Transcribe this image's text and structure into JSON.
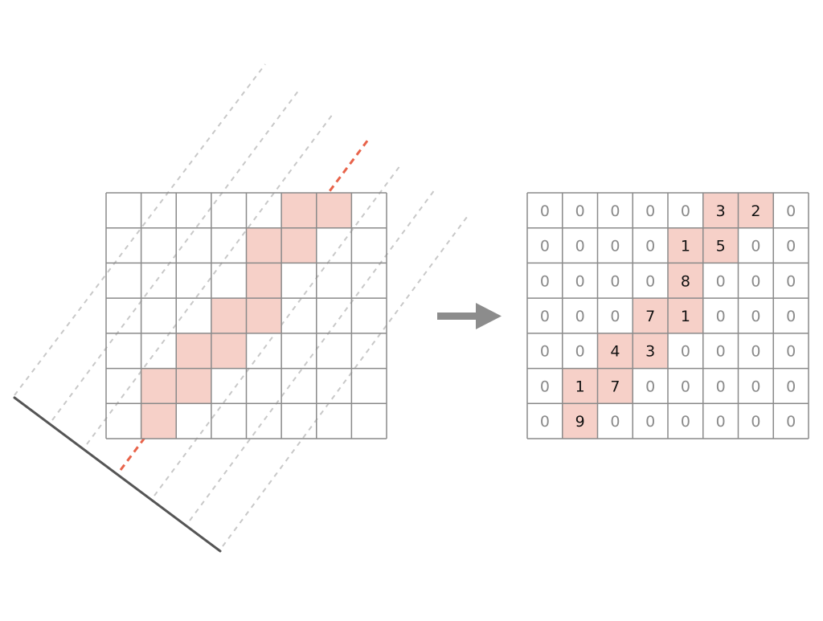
{
  "colors": {
    "grid_line": "#8a8a8a",
    "highlight": "#f6d0c8",
    "projection_line": "#e8634a",
    "ray_line": "#c8c8c8",
    "detector": "#555555",
    "arrow": "#8c8c8c",
    "value_zero": "#8a8a8a",
    "value_nonzero": "#111111"
  },
  "matrix": {
    "rows": [
      [
        "0",
        "0",
        "0",
        "0",
        "0",
        "3",
        "2",
        "0"
      ],
      [
        "0",
        "0",
        "0",
        "0",
        "1",
        "5",
        "0",
        "0"
      ],
      [
        "0",
        "0",
        "0",
        "0",
        "8",
        "0",
        "0",
        "0"
      ],
      [
        "0",
        "0",
        "0",
        "7",
        "1",
        "0",
        "0",
        "0"
      ],
      [
        "0",
        "0",
        "4",
        "3",
        "0",
        "0",
        "0",
        "0"
      ],
      [
        "0",
        "1",
        "7",
        "0",
        "0",
        "0",
        "0",
        "0"
      ],
      [
        "0",
        "9",
        "0",
        "0",
        "0",
        "0",
        "0",
        "0"
      ]
    ]
  },
  "pixel_grid": {
    "rows": 7,
    "cols": 8,
    "highlighted_cells": [
      [
        0,
        5
      ],
      [
        0,
        6
      ],
      [
        1,
        4
      ],
      [
        1,
        5
      ],
      [
        2,
        4
      ],
      [
        3,
        3
      ],
      [
        3,
        4
      ],
      [
        4,
        2
      ],
      [
        4,
        3
      ],
      [
        5,
        1
      ],
      [
        5,
        2
      ],
      [
        6,
        1
      ]
    ]
  },
  "rays": {
    "count": 6,
    "highlighted_ray": 4
  },
  "icons": {
    "arrow": "arrow-right-icon"
  }
}
